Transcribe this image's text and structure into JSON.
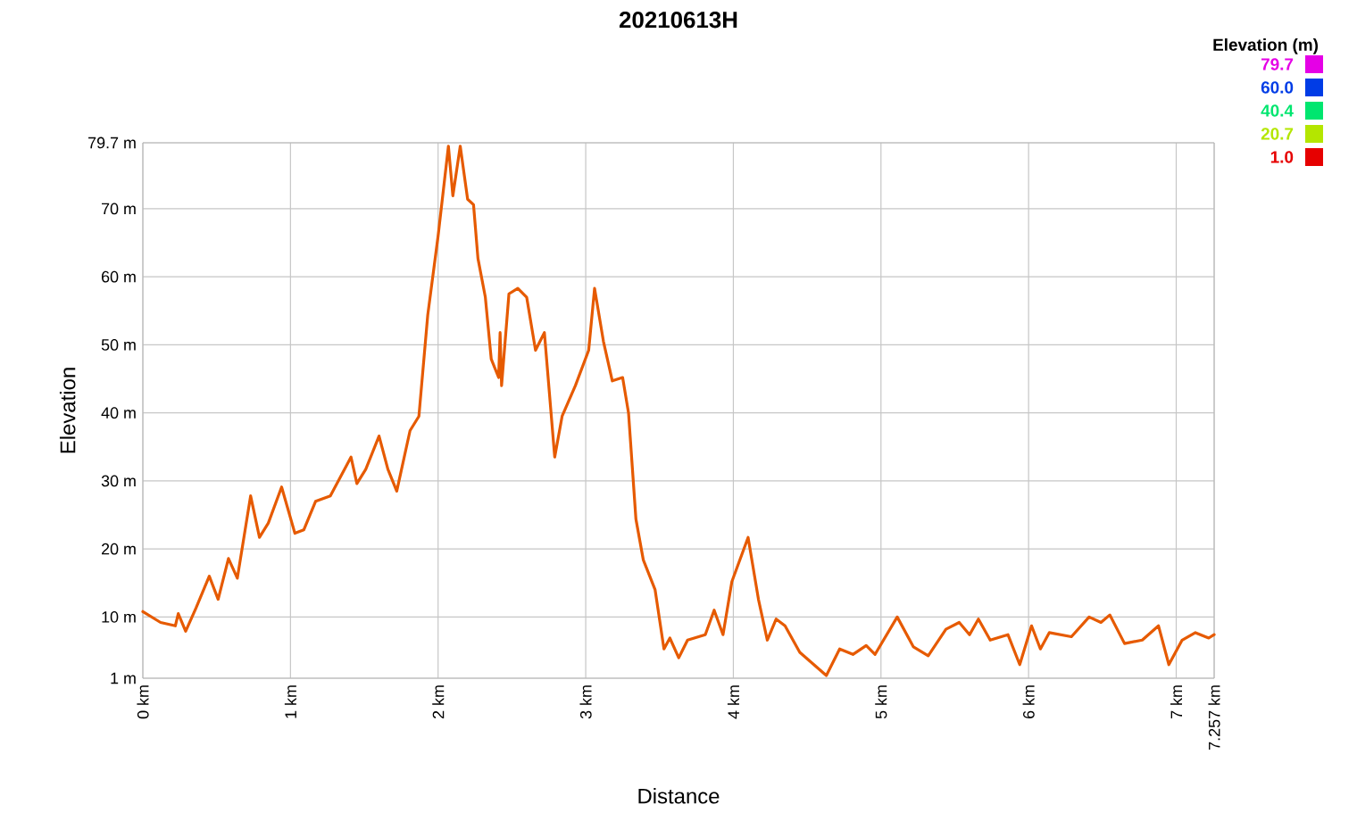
{
  "chart_data": {
    "type": "line",
    "title": "20210613H",
    "xlabel": "Distance",
    "ylabel": "Elevation",
    "clabel": "Elevation (m)",
    "x": [
      0,
      0.12,
      0.22,
      0.24,
      0.29,
      0.36,
      0.45,
      0.51,
      0.58,
      0.64,
      0.73,
      0.79,
      0.85,
      0.94,
      1.03,
      1.09,
      1.17,
      1.27,
      1.41,
      1.45,
      1.51,
      1.6,
      1.66,
      1.72,
      1.81,
      1.87,
      1.93,
      2.0,
      2.07,
      2.1,
      2.15,
      2.2,
      2.24,
      2.27,
      2.32,
      2.36,
      2.41,
      2.42,
      2.43,
      2.48,
      2.54,
      2.6,
      2.66,
      2.72,
      2.79,
      2.84,
      2.93,
      3.02,
      3.06,
      3.12,
      3.18,
      3.25,
      3.29,
      3.34,
      3.39,
      3.47,
      3.53,
      3.57,
      3.63,
      3.69,
      3.81,
      3.87,
      3.93,
      3.99,
      4.1,
      4.17,
      4.23,
      4.29,
      4.35,
      4.45,
      4.63,
      4.72,
      4.81,
      4.9,
      4.96,
      5.11,
      5.22,
      5.32,
      5.44,
      5.53,
      5.6,
      5.66,
      5.74,
      5.86,
      5.94,
      6.02,
      6.08,
      6.14,
      6.29,
      6.41,
      6.49,
      6.55,
      6.65,
      6.77,
      6.88,
      6.95,
      7.04,
      7.13,
      7.22,
      7.257
    ],
    "color": "#e65a00",
    "values": [
      10.8,
      9.2,
      8.7,
      10.5,
      7.9,
      11.3,
      16,
      12.6,
      18.6,
      15.7,
      27.8,
      21.7,
      23.8,
      29.1,
      22.3,
      22.8,
      27,
      27.8,
      33.5,
      29.6,
      31.7,
      36.6,
      31.7,
      28.5,
      37.4,
      39.5,
      54.4,
      66,
      79.2,
      71.9,
      79.2,
      71.4,
      70.6,
      62.7,
      57,
      47.9,
      45.2,
      51.8,
      44,
      57.5,
      58.3,
      57,
      49.2,
      51.8,
      33.5,
      39.5,
      44,
      49.2,
      58.3,
      50.5,
      44.7,
      45.2,
      40,
      24.4,
      18.4,
      14,
      5.3,
      6.9,
      4,
      6.6,
      7.4,
      11,
      7.4,
      15.2,
      21.7,
      12.6,
      6.6,
      9.7,
      8.7,
      4.8,
      1.4,
      5.3,
      4.5,
      5.8,
      4.5,
      10,
      5.6,
      4.3,
      8.2,
      9.2,
      7.4,
      9.7,
      6.6,
      7.4,
      3,
      8.7,
      5.3,
      7.7,
      7.1,
      10,
      9.2,
      10.3,
      6.1,
      6.6,
      8.7,
      3,
      6.6,
      7.7,
      6.9,
      7.4
    ],
    "clim": [
      1.0,
      79.7
    ],
    "cticks": [
      {
        "value": 79.7,
        "label": "79.7"
      },
      {
        "value": 60.0,
        "label": "60.0"
      },
      {
        "value": 40.4,
        "label": "40.4"
      },
      {
        "value": 20.7,
        "label": "20.7"
      },
      {
        "value": 1.0,
        "label": "1.0"
      }
    ],
    "xlim": [
      0,
      7.257
    ],
    "ylim": [
      1,
      79.7
    ],
    "xticks": [
      {
        "value": 0,
        "label": "0 km"
      },
      {
        "value": 1,
        "label": "1 km"
      },
      {
        "value": 2,
        "label": "2 km"
      },
      {
        "value": 3,
        "label": "3 km"
      },
      {
        "value": 4,
        "label": "4 km"
      },
      {
        "value": 5,
        "label": "5 km"
      },
      {
        "value": 6,
        "label": "6 km"
      },
      {
        "value": 7,
        "label": "7 km"
      },
      {
        "value": 7.257,
        "label": "7.257 km"
      }
    ],
    "yticks": [
      {
        "value": 1,
        "label": "1 m"
      },
      {
        "value": 10,
        "label": "10 m"
      },
      {
        "value": 20,
        "label": "20 m"
      },
      {
        "value": 30,
        "label": "30 m"
      },
      {
        "value": 40,
        "label": "40 m"
      },
      {
        "value": 50,
        "label": "50 m"
      },
      {
        "value": 60,
        "label": "60 m"
      },
      {
        "value": 70,
        "label": "70 m"
      },
      {
        "value": 79.7,
        "label": "79.7 m"
      }
    ],
    "grid": true
  }
}
